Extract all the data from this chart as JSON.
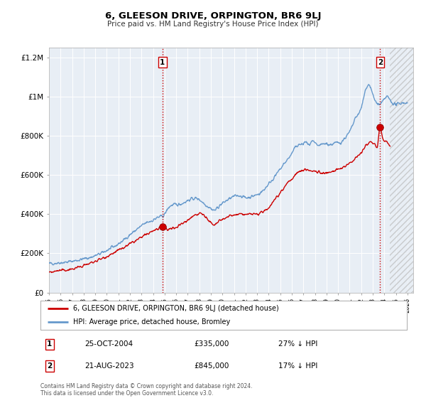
{
  "title": "6, GLEESON DRIVE, ORPINGTON, BR6 9LJ",
  "subtitle": "Price paid vs. HM Land Registry's House Price Index (HPI)",
  "ylim": [
    0,
    1250000
  ],
  "xlim": [
    1995.0,
    2026.5
  ],
  "yticks": [
    0,
    200000,
    400000,
    600000,
    800000,
    1000000,
    1200000
  ],
  "ytick_labels": [
    "£0",
    "£200K",
    "£400K",
    "£600K",
    "£800K",
    "£1M",
    "£1.2M"
  ],
  "xticks": [
    1995,
    1996,
    1997,
    1998,
    1999,
    2000,
    2001,
    2002,
    2003,
    2004,
    2005,
    2006,
    2007,
    2008,
    2009,
    2010,
    2011,
    2012,
    2013,
    2014,
    2015,
    2016,
    2017,
    2018,
    2019,
    2020,
    2021,
    2022,
    2023,
    2024,
    2025,
    2026
  ],
  "background_color": "#ffffff",
  "plot_bg_color": "#e8eef5",
  "grid_color": "#ffffff",
  "red_line_color": "#cc0000",
  "blue_line_color": "#6699cc",
  "marker1_x": 2004.82,
  "marker1_y": 335000,
  "marker2_x": 2023.64,
  "marker2_y": 845000,
  "vline1_x": 2004.82,
  "vline2_x": 2023.64,
  "hatch_start_x": 2024.5,
  "legend_label_red": "6, GLEESON DRIVE, ORPINGTON, BR6 9LJ (detached house)",
  "legend_label_blue": "HPI: Average price, detached house, Bromley",
  "table_row1": [
    "1",
    "25-OCT-2004",
    "£335,000",
    "27% ↓ HPI"
  ],
  "table_row2": [
    "2",
    "21-AUG-2023",
    "£845,000",
    "17% ↓ HPI"
  ],
  "footer1": "Contains HM Land Registry data © Crown copyright and database right 2024.",
  "footer2": "This data is licensed under the Open Government Licence v3.0.",
  "hpi_anchors": [
    [
      1995.0,
      148000
    ],
    [
      1995.5,
      150000
    ],
    [
      1996.0,
      153000
    ],
    [
      1996.5,
      155000
    ],
    [
      1997.0,
      160000
    ],
    [
      1997.5,
      165000
    ],
    [
      1998.0,
      172000
    ],
    [
      1998.5,
      178000
    ],
    [
      1999.0,
      188000
    ],
    [
      1999.5,
      200000
    ],
    [
      2000.0,
      215000
    ],
    [
      2000.5,
      230000
    ],
    [
      2001.0,
      248000
    ],
    [
      2001.5,
      270000
    ],
    [
      2002.0,
      295000
    ],
    [
      2002.5,
      318000
    ],
    [
      2003.0,
      340000
    ],
    [
      2003.5,
      358000
    ],
    [
      2004.0,
      370000
    ],
    [
      2004.5,
      385000
    ],
    [
      2005.0,
      400000
    ],
    [
      2005.3,
      430000
    ],
    [
      2005.6,
      445000
    ],
    [
      2006.0,
      448000
    ],
    [
      2006.5,
      455000
    ],
    [
      2007.0,
      470000
    ],
    [
      2007.5,
      480000
    ],
    [
      2008.0,
      475000
    ],
    [
      2008.5,
      450000
    ],
    [
      2009.0,
      430000
    ],
    [
      2009.3,
      420000
    ],
    [
      2009.6,
      435000
    ],
    [
      2010.0,
      455000
    ],
    [
      2010.5,
      475000
    ],
    [
      2011.0,
      490000
    ],
    [
      2011.5,
      495000
    ],
    [
      2012.0,
      485000
    ],
    [
      2012.5,
      490000
    ],
    [
      2013.0,
      500000
    ],
    [
      2013.5,
      520000
    ],
    [
      2014.0,
      555000
    ],
    [
      2014.5,
      590000
    ],
    [
      2015.0,
      630000
    ],
    [
      2015.5,
      670000
    ],
    [
      2016.0,
      710000
    ],
    [
      2016.3,
      740000
    ],
    [
      2016.6,
      755000
    ],
    [
      2017.0,
      760000
    ],
    [
      2017.2,
      770000
    ],
    [
      2017.4,
      755000
    ],
    [
      2017.6,
      760000
    ],
    [
      2017.8,
      770000
    ],
    [
      2018.0,
      760000
    ],
    [
      2018.3,
      750000
    ],
    [
      2018.6,
      755000
    ],
    [
      2019.0,
      760000
    ],
    [
      2019.3,
      755000
    ],
    [
      2019.6,
      760000
    ],
    [
      2020.0,
      765000
    ],
    [
      2020.3,
      770000
    ],
    [
      2020.6,
      790000
    ],
    [
      2021.0,
      820000
    ],
    [
      2021.3,
      860000
    ],
    [
      2021.6,
      900000
    ],
    [
      2022.0,
      940000
    ],
    [
      2022.2,
      990000
    ],
    [
      2022.4,
      1040000
    ],
    [
      2022.6,
      1060000
    ],
    [
      2022.8,
      1050000
    ],
    [
      2023.0,
      1010000
    ],
    [
      2023.2,
      980000
    ],
    [
      2023.4,
      965000
    ],
    [
      2023.6,
      960000
    ],
    [
      2023.8,
      970000
    ],
    [
      2024.0,
      985000
    ],
    [
      2024.2,
      1000000
    ],
    [
      2024.4,
      990000
    ],
    [
      2024.6,
      975000
    ],
    [
      2024.8,
      965000
    ],
    [
      2025.0,
      960000
    ],
    [
      2025.3,
      965000
    ],
    [
      2025.6,
      970000
    ],
    [
      2026.0,
      965000
    ]
  ],
  "red_anchors": [
    [
      1995.0,
      105000
    ],
    [
      1995.5,
      108000
    ],
    [
      1996.0,
      112000
    ],
    [
      1996.5,
      115000
    ],
    [
      1997.0,
      120000
    ],
    [
      1997.5,
      128000
    ],
    [
      1998.0,
      138000
    ],
    [
      1998.5,
      148000
    ],
    [
      1999.0,
      160000
    ],
    [
      1999.5,
      172000
    ],
    [
      2000.0,
      185000
    ],
    [
      2000.5,
      200000
    ],
    [
      2001.0,
      215000
    ],
    [
      2001.5,
      230000
    ],
    [
      2002.0,
      248000
    ],
    [
      2002.5,
      265000
    ],
    [
      2003.0,
      282000
    ],
    [
      2003.5,
      298000
    ],
    [
      2004.0,
      315000
    ],
    [
      2004.5,
      328000
    ],
    [
      2004.82,
      335000
    ],
    [
      2005.0,
      330000
    ],
    [
      2005.3,
      322000
    ],
    [
      2005.6,
      325000
    ],
    [
      2006.0,
      335000
    ],
    [
      2006.5,
      352000
    ],
    [
      2007.0,
      370000
    ],
    [
      2007.3,
      385000
    ],
    [
      2007.6,
      395000
    ],
    [
      2008.0,
      405000
    ],
    [
      2008.3,
      400000
    ],
    [
      2008.6,
      380000
    ],
    [
      2009.0,
      355000
    ],
    [
      2009.3,
      345000
    ],
    [
      2009.6,
      358000
    ],
    [
      2010.0,
      372000
    ],
    [
      2010.3,
      382000
    ],
    [
      2010.6,
      390000
    ],
    [
      2011.0,
      395000
    ],
    [
      2011.3,
      398000
    ],
    [
      2011.6,
      400000
    ],
    [
      2012.0,
      398000
    ],
    [
      2012.3,
      400000
    ],
    [
      2012.6,
      402000
    ],
    [
      2013.0,
      400000
    ],
    [
      2013.3,
      405000
    ],
    [
      2013.6,
      415000
    ],
    [
      2014.0,
      435000
    ],
    [
      2014.3,
      458000
    ],
    [
      2014.6,
      482000
    ],
    [
      2015.0,
      510000
    ],
    [
      2015.3,
      535000
    ],
    [
      2015.6,
      558000
    ],
    [
      2016.0,
      580000
    ],
    [
      2016.3,
      600000
    ],
    [
      2016.6,
      615000
    ],
    [
      2017.0,
      625000
    ],
    [
      2017.3,
      628000
    ],
    [
      2017.6,
      622000
    ],
    [
      2018.0,
      618000
    ],
    [
      2018.3,
      615000
    ],
    [
      2018.6,
      612000
    ],
    [
      2019.0,
      610000
    ],
    [
      2019.3,
      613000
    ],
    [
      2019.6,
      620000
    ],
    [
      2020.0,
      628000
    ],
    [
      2020.3,
      635000
    ],
    [
      2020.6,
      645000
    ],
    [
      2021.0,
      658000
    ],
    [
      2021.3,
      675000
    ],
    [
      2021.6,
      695000
    ],
    [
      2022.0,
      715000
    ],
    [
      2022.2,
      730000
    ],
    [
      2022.4,
      748000
    ],
    [
      2022.6,
      762000
    ],
    [
      2022.8,
      770000
    ],
    [
      2023.0,
      765000
    ],
    [
      2023.2,
      755000
    ],
    [
      2023.4,
      748000
    ],
    [
      2023.64,
      845000
    ],
    [
      2023.8,
      800000
    ],
    [
      2024.0,
      780000
    ],
    [
      2024.3,
      762000
    ],
    [
      2024.5,
      750000
    ]
  ]
}
